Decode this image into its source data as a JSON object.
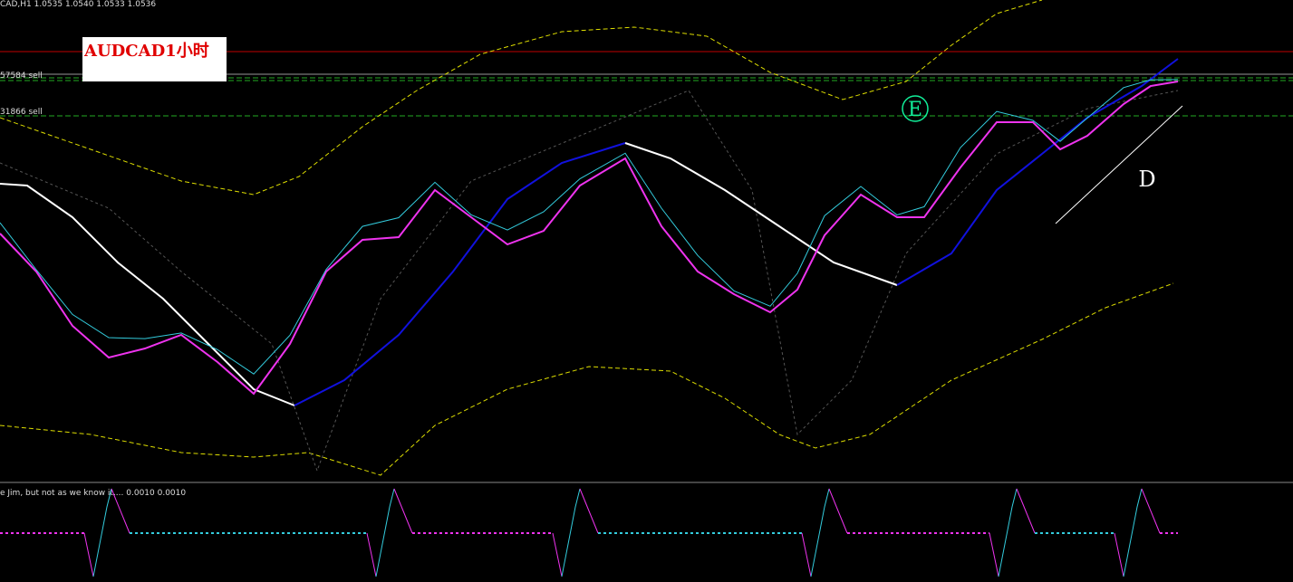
{
  "header": {
    "symbol_line": "CAD,H1  1.0535 1.0540 1.0533 1.0536"
  },
  "label_box": {
    "title": "AUDCAD1小时"
  },
  "levels": [
    {
      "label": "57584 sell"
    },
    {
      "label": "31866 sell"
    }
  ],
  "annotations": {
    "e_mark": "E",
    "d_mark": "D"
  },
  "indicator": {
    "title": "e Jim, but not as we know it.... 0.0010 0.0010"
  }
}
